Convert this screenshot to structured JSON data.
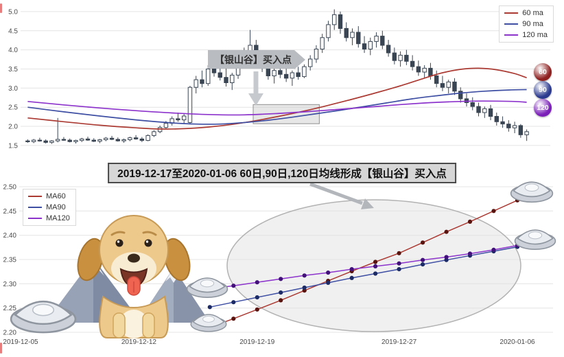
{
  "colors": {
    "grid": "#e4e4e4",
    "candle": "#3a4553",
    "axis_text": "#4a4a4a",
    "highlight_fill": "rgba(185,185,185,0.35)",
    "ellipse_fill": "#e2e2e2",
    "ellipse_stroke": "#b2b2b2"
  },
  "section_title": "2019-12-17至2020-01-06 60日,90日,120日均线形成【银山谷】买入点",
  "top_chart": {
    "annotation": "【银山谷】买入点",
    "badges": [
      {
        "label": "60",
        "color": "#8e2020",
        "y_value": 3.42
      },
      {
        "label": "90",
        "color": "#2b3a8f",
        "y_value": 2.95
      },
      {
        "label": "120",
        "color": "#7a1fb8",
        "y_value": 2.49
      }
    ]
  },
  "chart_data": [
    {
      "type": "candlestick",
      "title": "",
      "ylim": [
        1.39,
        5.16
      ],
      "y_ticks": [
        1.5,
        2.0,
        2.5,
        3.0,
        3.5,
        4.0,
        4.5,
        5.0
      ],
      "grid": true,
      "legend_position": "top-right",
      "candles": [
        [
          1.62,
          1.66,
          1.57,
          1.6
        ],
        [
          1.6,
          1.67,
          1.56,
          1.64
        ],
        [
          1.64,
          1.7,
          1.6,
          1.62
        ],
        [
          1.62,
          1.66,
          1.55,
          1.58
        ],
        [
          1.58,
          1.64,
          1.54,
          1.62
        ],
        [
          1.62,
          2.22,
          1.58,
          1.66
        ],
        [
          1.66,
          1.72,
          1.62,
          1.64
        ],
        [
          1.64,
          1.68,
          1.58,
          1.6
        ],
        [
          1.6,
          1.65,
          1.55,
          1.63
        ],
        [
          1.63,
          1.7,
          1.59,
          1.67
        ],
        [
          1.67,
          1.73,
          1.62,
          1.64
        ],
        [
          1.64,
          1.69,
          1.59,
          1.61
        ],
        [
          1.61,
          1.67,
          1.56,
          1.65
        ],
        [
          1.65,
          1.72,
          1.61,
          1.69
        ],
        [
          1.69,
          1.75,
          1.64,
          1.66
        ],
        [
          1.66,
          1.71,
          1.6,
          1.62
        ],
        [
          1.62,
          1.68,
          1.57,
          1.65
        ],
        [
          1.65,
          1.73,
          1.61,
          1.7
        ],
        [
          1.7,
          1.77,
          1.65,
          1.67
        ],
        [
          1.67,
          1.72,
          1.59,
          1.63
        ],
        [
          1.63,
          1.79,
          1.61,
          1.76
        ],
        [
          1.76,
          1.9,
          1.72,
          1.86
        ],
        [
          1.86,
          2.02,
          1.82,
          1.97
        ],
        [
          1.97,
          2.14,
          1.92,
          2.08
        ],
        [
          2.08,
          2.26,
          2.02,
          2.2
        ],
        [
          2.2,
          2.36,
          2.12,
          2.17
        ],
        [
          2.17,
          2.32,
          2.08,
          2.27
        ],
        [
          2.1,
          3.06,
          2.06,
          3.02
        ],
        [
          3.02,
          3.32,
          2.86,
          3.22
        ],
        [
          3.22,
          3.46,
          3.02,
          3.12
        ],
        [
          3.12,
          3.6,
          3.06,
          3.5
        ],
        [
          3.5,
          3.76,
          3.3,
          3.4
        ],
        [
          3.4,
          3.7,
          3.2,
          3.28
        ],
        [
          3.28,
          3.54,
          3.04,
          3.14
        ],
        [
          3.14,
          3.4,
          2.95,
          3.34
        ],
        [
          3.34,
          3.8,
          3.24,
          3.7
        ],
        [
          3.7,
          4.06,
          3.54,
          3.92
        ],
        [
          3.92,
          4.52,
          3.76,
          4.12
        ],
        [
          4.12,
          4.26,
          3.62,
          3.72
        ],
        [
          3.72,
          3.92,
          3.42,
          3.52
        ],
        [
          3.52,
          3.66,
          3.22,
          3.32
        ],
        [
          3.32,
          3.52,
          3.12,
          3.46
        ],
        [
          3.46,
          3.62,
          3.26,
          3.36
        ],
        [
          3.36,
          3.56,
          3.16,
          3.26
        ],
        [
          3.26,
          3.46,
          3.06,
          3.4
        ],
        [
          3.4,
          3.56,
          3.22,
          3.3
        ],
        [
          3.3,
          3.62,
          3.26,
          3.56
        ],
        [
          3.56,
          3.86,
          3.46,
          3.76
        ],
        [
          3.76,
          4.12,
          3.66,
          4.02
        ],
        [
          4.02,
          4.42,
          3.92,
          4.32
        ],
        [
          4.32,
          4.76,
          4.22,
          4.66
        ],
        [
          4.66,
          5.06,
          4.52,
          4.92
        ],
        [
          4.92,
          5.0,
          4.42,
          4.56
        ],
        [
          4.56,
          4.72,
          4.22,
          4.32
        ],
        [
          4.32,
          4.56,
          4.12,
          4.46
        ],
        [
          4.46,
          4.62,
          4.06,
          4.16
        ],
        [
          4.16,
          4.36,
          3.92,
          4.02
        ],
        [
          4.02,
          4.32,
          3.86,
          4.22
        ],
        [
          4.22,
          4.46,
          4.06,
          4.36
        ],
        [
          4.36,
          4.5,
          4.02,
          4.12
        ],
        [
          4.12,
          4.26,
          3.82,
          3.92
        ],
        [
          3.92,
          4.06,
          3.62,
          3.72
        ],
        [
          3.72,
          3.96,
          3.56,
          3.86
        ],
        [
          3.86,
          4.0,
          3.6,
          3.7
        ],
        [
          3.7,
          3.86,
          3.46,
          3.56
        ],
        [
          3.56,
          3.72,
          3.32,
          3.42
        ],
        [
          3.42,
          3.6,
          3.26,
          3.52
        ],
        [
          3.52,
          3.66,
          3.22,
          3.32
        ],
        [
          3.32,
          3.46,
          3.02,
          3.12
        ],
        [
          3.12,
          3.32,
          2.92,
          3.02
        ],
        [
          3.02,
          3.22,
          2.86,
          3.16
        ],
        [
          3.16,
          3.26,
          2.82,
          2.92
        ],
        [
          2.92,
          3.02,
          2.62,
          2.72
        ],
        [
          2.72,
          2.86,
          2.52,
          2.62
        ],
        [
          2.62,
          2.76,
          2.42,
          2.52
        ],
        [
          2.52,
          2.62,
          2.26,
          2.36
        ],
        [
          2.36,
          2.52,
          2.22,
          2.46
        ],
        [
          2.46,
          2.56,
          2.16,
          2.26
        ],
        [
          2.26,
          2.36,
          2.02,
          2.12
        ],
        [
          2.12,
          2.26,
          1.96,
          2.06
        ],
        [
          2.06,
          2.16,
          1.86,
          1.96
        ],
        [
          1.96,
          2.12,
          1.82,
          2.02
        ],
        [
          2.02,
          2.06,
          1.7,
          1.78
        ],
        [
          1.78,
          1.92,
          1.62,
          1.86
        ]
      ],
      "overlays": [
        {
          "name": "60 ma",
          "color": "#ab3a33",
          "points": [
            [
              0,
              2.22
            ],
            [
              6,
              2.12
            ],
            [
              12,
              2.03
            ],
            [
              18,
              1.96
            ],
            [
              22,
              1.93
            ],
            [
              26,
              1.94
            ],
            [
              30,
              1.98
            ],
            [
              34,
              2.05
            ],
            [
              38,
              2.15
            ],
            [
              42,
              2.27
            ],
            [
              46,
              2.4
            ],
            [
              50,
              2.55
            ],
            [
              54,
              2.71
            ],
            [
              58,
              2.88
            ],
            [
              62,
              3.06
            ],
            [
              66,
              3.26
            ],
            [
              69,
              3.4
            ],
            [
              72,
              3.49
            ],
            [
              75,
              3.52
            ],
            [
              78,
              3.48
            ],
            [
              81,
              3.38
            ],
            [
              83,
              3.27
            ]
          ]
        },
        {
          "name": "90 ma",
          "color": "#3d4ea3",
          "points": [
            [
              0,
              2.5
            ],
            [
              6,
              2.38
            ],
            [
              12,
              2.27
            ],
            [
              18,
              2.17
            ],
            [
              24,
              2.09
            ],
            [
              28,
              2.06
            ],
            [
              32,
              2.06
            ],
            [
              36,
              2.1
            ],
            [
              40,
              2.16
            ],
            [
              44,
              2.24
            ],
            [
              48,
              2.33
            ],
            [
              52,
              2.42
            ],
            [
              56,
              2.52
            ],
            [
              60,
              2.62
            ],
            [
              64,
              2.72
            ],
            [
              68,
              2.8
            ],
            [
              72,
              2.87
            ],
            [
              76,
              2.92
            ],
            [
              80,
              2.95
            ],
            [
              83,
              2.96
            ]
          ]
        },
        {
          "name": "120 ma",
          "color": "#8c33cc",
          "points": [
            [
              0,
              2.65
            ],
            [
              6,
              2.56
            ],
            [
              12,
              2.48
            ],
            [
              18,
              2.41
            ],
            [
              24,
              2.35
            ],
            [
              30,
              2.31
            ],
            [
              36,
              2.3
            ],
            [
              42,
              2.34
            ],
            [
              48,
              2.4
            ],
            [
              54,
              2.47
            ],
            [
              58,
              2.52
            ],
            [
              62,
              2.57
            ],
            [
              66,
              2.61
            ],
            [
              70,
              2.64
            ],
            [
              74,
              2.66
            ],
            [
              78,
              2.66
            ],
            [
              81,
              2.65
            ],
            [
              83,
              2.63
            ]
          ]
        }
      ],
      "highlight_box": {
        "start_index": 38,
        "end_index": 49,
        "y_low": 2.07,
        "y_high": 2.57
      }
    },
    {
      "type": "line",
      "ylim": [
        2.2,
        2.5
      ],
      "y_ticks": [
        2.2,
        2.25,
        2.3,
        2.35,
        2.4,
        2.45,
        2.5
      ],
      "x_index_max": 21,
      "x_ticks": [
        {
          "index": 0,
          "label": "2019-12-05"
        },
        {
          "index": 5,
          "label": "2019-12-12"
        },
        {
          "index": 10,
          "label": "2019-12-19"
        },
        {
          "index": 16,
          "label": "2019-12-27"
        },
        {
          "index": 21,
          "label": "2020-01-06"
        }
      ],
      "grid": true,
      "legend_position": "top-left",
      "series": [
        {
          "name": "MA60",
          "color": "#ab3a33",
          "dot_color": "#5a140f",
          "start_index": 8,
          "dates": [
            "2019-12-17",
            "2019-12-18",
            "2019-12-19",
            "2019-12-20",
            "2019-12-23",
            "2019-12-24",
            "2019-12-25",
            "2019-12-26",
            "2019-12-27",
            "2019-12-30",
            "2019-12-31",
            "2020-01-02",
            "2020-01-03",
            "2020-01-06"
          ],
          "values": [
            2.21,
            2.228,
            2.247,
            2.266,
            2.286,
            2.306,
            2.326,
            2.345,
            2.363,
            2.385,
            2.407,
            2.428,
            2.45,
            2.472
          ]
        },
        {
          "name": "MA90",
          "color": "#3d4ea3",
          "dot_color": "#1c2a66",
          "start_index": 8,
          "dates": [
            "2019-12-17",
            "2019-12-18",
            "2019-12-19",
            "2019-12-20",
            "2019-12-23",
            "2019-12-24",
            "2019-12-25",
            "2019-12-26",
            "2019-12-27",
            "2019-12-30",
            "2019-12-31",
            "2020-01-02",
            "2020-01-03",
            "2020-01-06"
          ],
          "values": [
            2.252,
            2.262,
            2.272,
            2.282,
            2.292,
            2.302,
            2.312,
            2.321,
            2.33,
            2.34,
            2.349,
            2.358,
            2.367,
            2.376
          ]
        },
        {
          "name": "MA120",
          "color": "#8c33cc",
          "dot_color": "#43117a",
          "start_index": 8,
          "dates": [
            "2019-12-17",
            "2019-12-18",
            "2019-12-19",
            "2019-12-20",
            "2019-12-23",
            "2019-12-24",
            "2019-12-25",
            "2019-12-26",
            "2019-12-27",
            "2019-12-30",
            "2019-12-31",
            "2020-01-02",
            "2020-01-03",
            "2020-01-06"
          ],
          "values": [
            2.29,
            2.296,
            2.303,
            2.31,
            2.317,
            2.323,
            2.33,
            2.336,
            2.342,
            2.349,
            2.355,
            2.362,
            2.37,
            2.379
          ]
        }
      ]
    }
  ]
}
